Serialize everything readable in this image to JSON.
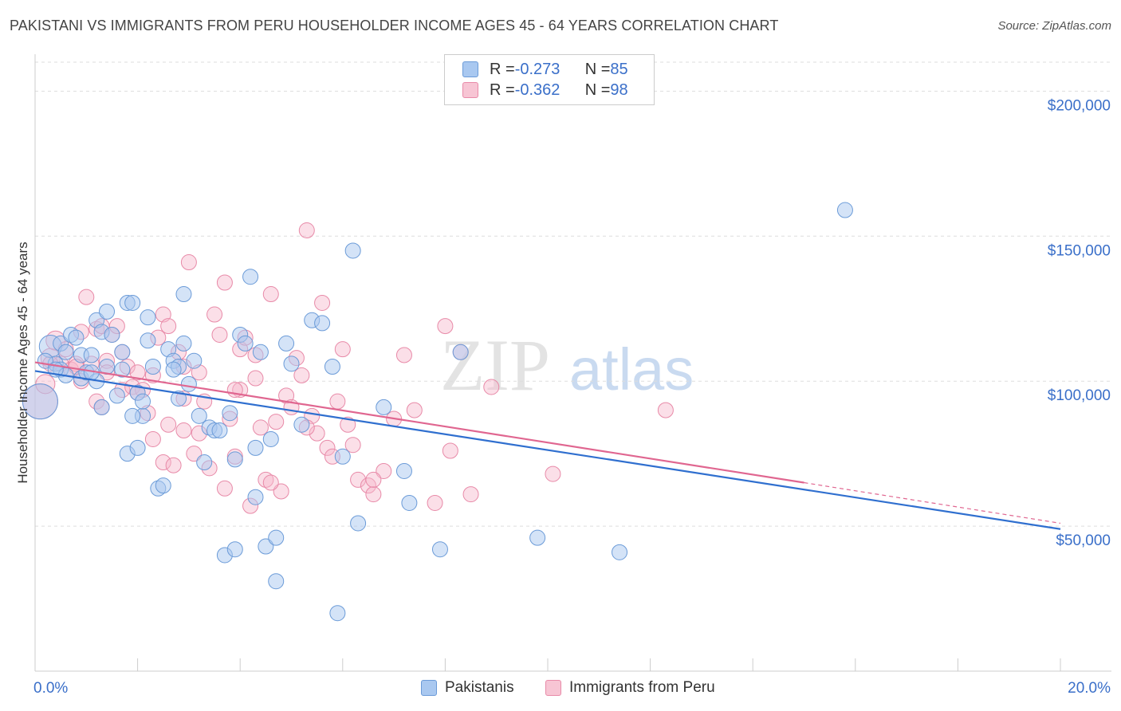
{
  "title": "PAKISTANI VS IMMIGRANTS FROM PERU HOUSEHOLDER INCOME AGES 45 - 64 YEARS CORRELATION CHART",
  "source": "Source: ZipAtlas.com",
  "watermark": {
    "zip": "ZIP",
    "atlas": "atlas"
  },
  "colors": {
    "blue_fill": "#a9c8f0",
    "blue_stroke": "#6b9bd8",
    "blue_line": "#2f6fcf",
    "pink_fill": "#f7b9cc",
    "pink_stroke": "#e88aa8",
    "pink_line": "#e06690",
    "axis_label": "#3a6fc9",
    "grid": "#dddddd"
  },
  "legend": [
    {
      "r_label": "R = ",
      "r_value": "-0.273",
      "n_label": "N = ",
      "n_value": "85",
      "color": "blue"
    },
    {
      "r_label": "R = ",
      "r_value": "-0.362",
      "n_label": "N = ",
      "n_value": "98",
      "color": "pink"
    }
  ],
  "chart_data": {
    "type": "scatter",
    "xlabel": "",
    "ylabel": "Householder Income Ages 45 - 64 years",
    "xlim": [
      0,
      20
    ],
    "ylim": [
      0,
      210000
    ],
    "x_tick_labels": [
      "0.0%",
      "20.0%"
    ],
    "y_ticks": [
      50000,
      100000,
      150000,
      200000
    ],
    "y_tick_labels": [
      "$50,000",
      "$100,000",
      "$150,000",
      "$200,000"
    ],
    "grid": true,
    "legend_placement": "top-center",
    "series": [
      {
        "name": "Pakistanis",
        "color": "blue",
        "trend": {
          "x": [
            0,
            20
          ],
          "y": [
            103500,
            49000
          ]
        },
        "points": [
          [
            0.1,
            93000
          ],
          [
            0.3,
            112000
          ],
          [
            0.4,
            106000
          ],
          [
            0.5,
            113000
          ],
          [
            0.5,
            104000
          ],
          [
            0.6,
            110000
          ],
          [
            0.7,
            116000
          ],
          [
            0.8,
            115000
          ],
          [
            0.9,
            109000
          ],
          [
            0.9,
            101000
          ],
          [
            1.0,
            103000
          ],
          [
            1.1,
            109000
          ],
          [
            1.2,
            121000
          ],
          [
            1.2,
            100000
          ],
          [
            1.3,
            117000
          ],
          [
            1.3,
            91000
          ],
          [
            1.4,
            105000
          ],
          [
            1.4,
            124000
          ],
          [
            1.5,
            116000
          ],
          [
            1.6,
            95000
          ],
          [
            1.7,
            110000
          ],
          [
            1.7,
            104000
          ],
          [
            1.8,
            75000
          ],
          [
            1.8,
            127000
          ],
          [
            1.9,
            127000
          ],
          [
            2.0,
            96000
          ],
          [
            2.0,
            77000
          ],
          [
            2.1,
            88000
          ],
          [
            2.1,
            93000
          ],
          [
            2.2,
            114000
          ],
          [
            2.2,
            122000
          ],
          [
            2.3,
            105000
          ],
          [
            2.4,
            63000
          ],
          [
            2.5,
            64000
          ],
          [
            2.6,
            111000
          ],
          [
            2.7,
            107000
          ],
          [
            2.8,
            94000
          ],
          [
            2.8,
            105000
          ],
          [
            2.9,
            130000
          ],
          [
            2.9,
            113000
          ],
          [
            3.0,
            99000
          ],
          [
            3.1,
            107000
          ],
          [
            3.2,
            88000
          ],
          [
            3.3,
            72000
          ],
          [
            3.4,
            84000
          ],
          [
            3.5,
            83000
          ],
          [
            3.7,
            40000
          ],
          [
            3.8,
            89000
          ],
          [
            3.9,
            73000
          ],
          [
            3.9,
            42000
          ],
          [
            4.0,
            116000
          ],
          [
            4.1,
            113000
          ],
          [
            4.2,
            136000
          ],
          [
            4.3,
            77000
          ],
          [
            4.3,
            60000
          ],
          [
            4.4,
            110000
          ],
          [
            4.5,
            43000
          ],
          [
            4.6,
            80000
          ],
          [
            4.7,
            46000
          ],
          [
            4.7,
            31000
          ],
          [
            4.9,
            113000
          ],
          [
            5.0,
            106000
          ],
          [
            5.2,
            85000
          ],
          [
            5.4,
            121000
          ],
          [
            5.6,
            120000
          ],
          [
            5.8,
            105000
          ],
          [
            5.9,
            20000
          ],
          [
            6.0,
            74000
          ],
          [
            6.2,
            145000
          ],
          [
            6.3,
            51000
          ],
          [
            6.8,
            91000
          ],
          [
            7.2,
            69000
          ],
          [
            7.3,
            58000
          ],
          [
            7.9,
            42000
          ],
          [
            8.3,
            110000
          ],
          [
            9.8,
            46000
          ],
          [
            11.4,
            41000
          ],
          [
            15.8,
            159000
          ],
          [
            0.2,
            107000
          ],
          [
            0.6,
            102000
          ],
          [
            1.9,
            88000
          ],
          [
            3.6,
            83000
          ],
          [
            2.7,
            104000
          ],
          [
            1.1,
            103000
          ],
          [
            0.4,
            104000
          ]
        ]
      },
      {
        "name": "Immigrants from Peru",
        "color": "pink",
        "trend": {
          "x": [
            0,
            15
          ],
          "y": [
            106500,
            65000
          ]
        },
        "trend_dashed": {
          "x": [
            15,
            20
          ],
          "y": [
            65000,
            51000
          ]
        },
        "points": [
          [
            0.1,
            93000
          ],
          [
            0.2,
            99000
          ],
          [
            0.3,
            108000
          ],
          [
            0.4,
            114000
          ],
          [
            0.5,
            106000
          ],
          [
            0.6,
            111000
          ],
          [
            0.7,
            104000
          ],
          [
            0.8,
            106000
          ],
          [
            0.9,
            117000
          ],
          [
            0.9,
            100000
          ],
          [
            1.0,
            129000
          ],
          [
            1.1,
            106000
          ],
          [
            1.2,
            118000
          ],
          [
            1.2,
            93000
          ],
          [
            1.3,
            91000
          ],
          [
            1.4,
            107000
          ],
          [
            1.5,
            116000
          ],
          [
            1.6,
            119000
          ],
          [
            1.7,
            110000
          ],
          [
            1.7,
            97000
          ],
          [
            1.8,
            105000
          ],
          [
            1.9,
            98000
          ],
          [
            2.0,
            103000
          ],
          [
            2.1,
            97000
          ],
          [
            2.2,
            89000
          ],
          [
            2.3,
            102000
          ],
          [
            2.3,
            80000
          ],
          [
            2.4,
            115000
          ],
          [
            2.5,
            123000
          ],
          [
            2.5,
            72000
          ],
          [
            2.6,
            119000
          ],
          [
            2.6,
            85000
          ],
          [
            2.7,
            71000
          ],
          [
            2.8,
            110000
          ],
          [
            2.9,
            83000
          ],
          [
            2.9,
            94000
          ],
          [
            3.0,
            141000
          ],
          [
            3.1,
            75000
          ],
          [
            3.2,
            103000
          ],
          [
            3.2,
            82000
          ],
          [
            3.3,
            93000
          ],
          [
            3.4,
            70000
          ],
          [
            3.5,
            123000
          ],
          [
            3.6,
            116000
          ],
          [
            3.7,
            63000
          ],
          [
            3.7,
            134000
          ],
          [
            3.8,
            87000
          ],
          [
            3.9,
            74000
          ],
          [
            4.0,
            111000
          ],
          [
            4.0,
            97000
          ],
          [
            4.1,
            115000
          ],
          [
            4.2,
            57000
          ],
          [
            4.3,
            109000
          ],
          [
            4.3,
            101000
          ],
          [
            4.4,
            84000
          ],
          [
            4.5,
            66000
          ],
          [
            4.6,
            130000
          ],
          [
            4.7,
            86000
          ],
          [
            4.8,
            62000
          ],
          [
            4.9,
            95000
          ],
          [
            5.0,
            91000
          ],
          [
            5.1,
            108000
          ],
          [
            5.2,
            102000
          ],
          [
            5.3,
            152000
          ],
          [
            5.4,
            88000
          ],
          [
            5.5,
            82000
          ],
          [
            5.6,
            127000
          ],
          [
            5.7,
            77000
          ],
          [
            5.8,
            74000
          ],
          [
            5.9,
            93000
          ],
          [
            6.0,
            111000
          ],
          [
            6.1,
            85000
          ],
          [
            6.2,
            78000
          ],
          [
            6.3,
            66000
          ],
          [
            6.5,
            64000
          ],
          [
            6.6,
            61000
          ],
          [
            6.8,
            69000
          ],
          [
            7.0,
            87000
          ],
          [
            7.2,
            109000
          ],
          [
            7.4,
            90000
          ],
          [
            7.8,
            58000
          ],
          [
            8.0,
            119000
          ],
          [
            8.1,
            76000
          ],
          [
            8.3,
            110000
          ],
          [
            8.5,
            61000
          ],
          [
            8.9,
            98000
          ],
          [
            10.1,
            68000
          ],
          [
            12.3,
            90000
          ],
          [
            0.3,
            106000
          ],
          [
            0.8,
            105000
          ],
          [
            1.4,
            103000
          ],
          [
            2.0,
            96000
          ],
          [
            2.9,
            105000
          ],
          [
            3.9,
            97000
          ],
          [
            4.6,
            65000
          ],
          [
            5.3,
            84000
          ],
          [
            6.6,
            66000
          ],
          [
            1.3,
            119000
          ]
        ]
      }
    ]
  },
  "bottom_legend": [
    {
      "label": "Pakistanis",
      "color": "blue"
    },
    {
      "label": "Immigrants from Peru",
      "color": "pink"
    }
  ]
}
